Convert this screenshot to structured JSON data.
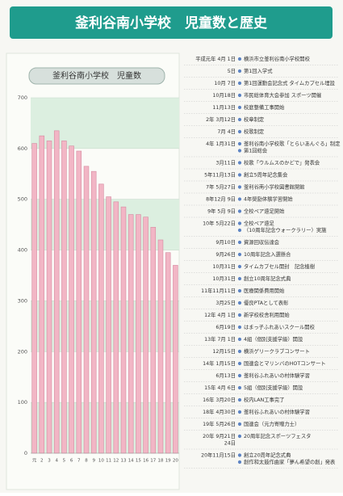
{
  "header": {
    "title": "釜利谷南小学校　児童数と歴史"
  },
  "chart_data": {
    "type": "bar",
    "title": "釜利谷南小学校　児童数",
    "categories": [
      "元",
      "2",
      "3",
      "4",
      "5",
      "6",
      "7",
      "8",
      "9",
      "10",
      "11",
      "12",
      "13",
      "14",
      "15",
      "16",
      "17",
      "18",
      "19",
      "20"
    ],
    "values": [
      610,
      625,
      615,
      635,
      615,
      605,
      595,
      565,
      555,
      530,
      505,
      495,
      485,
      470,
      470,
      465,
      445,
      420,
      395,
      370
    ],
    "color": "#f2b6c5",
    "ylim": [
      0,
      700
    ],
    "yticks": [
      0,
      100,
      200,
      300,
      400,
      500,
      600,
      700
    ],
    "grid": true
  },
  "timeline": {
    "entries": [
      {
        "date": "平成元年 4月 1日",
        "items": [
          "横浜市立釜利谷南小学校開校"
        ]
      },
      {
        "date": "5日",
        "items": [
          "第1回入学式"
        ]
      },
      {
        "date": "10月 7日",
        "items": [
          "第1回運動会記念式 タイムカプセル埋設"
        ]
      },
      {
        "date": "10月18日",
        "items": [
          "市民総体育大会参加 スポーツ開催"
        ]
      },
      {
        "date": "11月13日",
        "items": [
          "校庭整備工事開始"
        ]
      },
      {
        "date": "2年 3月12日",
        "items": [
          "校章制定"
        ]
      },
      {
        "date": "7月 4日",
        "items": [
          "校歌制定"
        ]
      },
      {
        "date": "4年 1月31日",
        "items": [
          "釜利谷南小学校歌「とらいあんぐる」制定",
          "第1回総会"
        ]
      },
      {
        "date": "3月11日",
        "items": [
          "校歌「ウルムスのかどで」発表会"
        ]
      },
      {
        "date": "5年11月13日",
        "items": [
          "創立5周年記念集会"
        ]
      },
      {
        "date": "7年 5月27日",
        "items": [
          "釜利谷南小学校図書館開館"
        ]
      },
      {
        "date": "8年12月 9日",
        "items": [
          "4年奨励体験学習開始"
        ]
      },
      {
        "date": "9年 5月 9日",
        "items": [
          "全校ペア遠足開始"
        ]
      },
      {
        "date": "10年 5月22日",
        "items": [
          "全校ペア遠足",
          "（10周年記念ウォークラリー）実施"
        ]
      },
      {
        "date": "9月10日",
        "items": [
          "資源回収伝達会"
        ]
      },
      {
        "date": "9月26日",
        "items": [
          "10周年記念入選懸合"
        ]
      },
      {
        "date": "10月31日",
        "items": [
          "タイムカプセル開封　記念植樹"
        ]
      },
      {
        "date": "10月31日",
        "items": [
          "創立10周年記念式典"
        ]
      },
      {
        "date": "11年11月11日",
        "items": [
          "医療関係費用開始"
        ]
      },
      {
        "date": "3月25日",
        "items": [
          "優良PTAとして表彰"
        ]
      },
      {
        "date": "12年 4月 1日",
        "items": [
          "新学校校舎利用開始"
        ]
      },
      {
        "date": "6月19日",
        "items": [
          "はまっ子ふれあいスクール開校"
        ]
      },
      {
        "date": "13年 7月 1日",
        "items": [
          "4組（個別支援学級）開設"
        ]
      },
      {
        "date": "12月15日",
        "items": [
          "横浜ゲリークラブコンサート"
        ]
      },
      {
        "date": "14年 1月15日",
        "items": [
          "国連会とマリンバのHOTコンサート"
        ]
      },
      {
        "date": "6月13日",
        "items": [
          "釜利谷ふれあいの村体験学習"
        ]
      },
      {
        "date": "15年 4月 6日",
        "items": [
          "5組（個別支援学級）開設"
        ]
      },
      {
        "date": "16年 3月20日",
        "items": [
          "校内LAN工事完了"
        ]
      },
      {
        "date": "18年 4月30日",
        "items": [
          "釜利谷ふれあいの村体験学習"
        ]
      },
      {
        "date": "19年 5月26日",
        "items": [
          "国連会（元力寄贈力士）"
        ]
      },
      {
        "date": [
          "20年 9月21日",
          "24日"
        ],
        "items": [
          "20周年記念スポーツフェスタ"
        ]
      },
      {
        "date": "20年11月15日",
        "items": [
          "創立20周年記念式典",
          "創作和太鼓作曲家「夢ん希望の創」発表"
        ]
      }
    ]
  }
}
